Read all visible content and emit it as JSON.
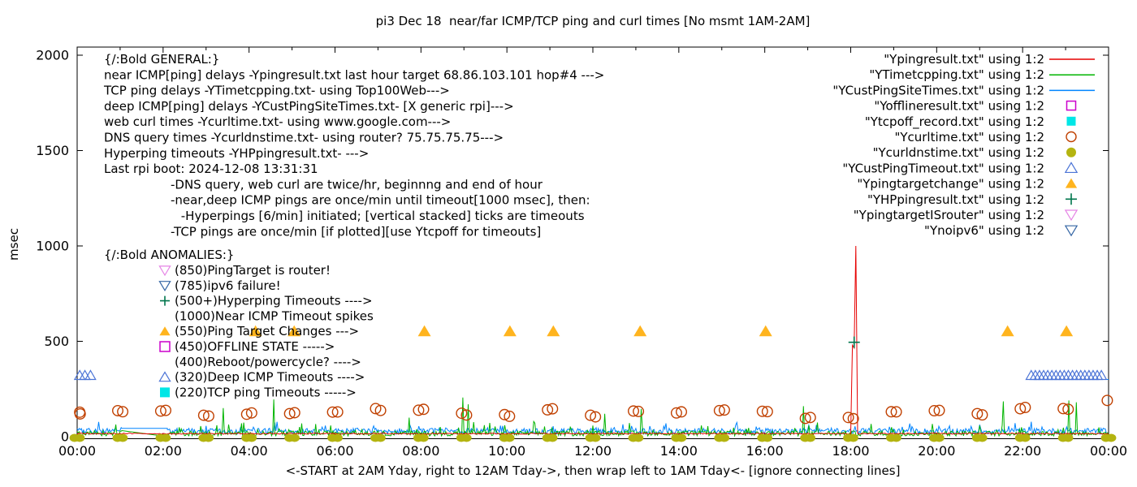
{
  "title": "pi3 Dec 18  near/far ICMP/TCP ping and curl times [No msmt 1AM-2AM]",
  "ylabel": "msec",
  "xlabel": "<-START at 2AM Yday, right to 12AM Tday->, then wrap left to 1AM Tday<- [ignore connecting lines]",
  "chart_data": {
    "type": "line",
    "x_hours_span": 24,
    "x_ticks_labels": [
      "00:00",
      "02:00",
      "04:00",
      "06:00",
      "08:00",
      "10:00",
      "12:00",
      "14:00",
      "16:00",
      "18:00",
      "20:00",
      "22:00",
      "00:00"
    ],
    "y_ticks": [
      0,
      500,
      1000,
      1500,
      2000
    ],
    "ylim": [
      0,
      2050
    ],
    "grid": false,
    "legend_position": "top-right",
    "legend": [
      {
        "label": "\"Ypingresult.txt\" using 1:2",
        "style": "line",
        "color": "#e60000"
      },
      {
        "label": "\"YTimetcpping.txt\" using 1:2",
        "style": "line",
        "color": "#00b400"
      },
      {
        "label": "\"YCustPingSiteTimes.txt\" using 1:2",
        "style": "line",
        "color": "#0084ff"
      },
      {
        "label": "\"Yofflineresult.txt\" using 1:2",
        "style": "square-open",
        "color": "#cc00cc"
      },
      {
        "label": "\"Ytcpoff_record.txt\" using 1:2",
        "style": "square-filled",
        "color": "#00e6e6"
      },
      {
        "label": "\"Ycurltime.txt\" using 1:2",
        "style": "circle-open",
        "color": "#c04000"
      },
      {
        "label": "\"Ycurldnstime.txt\" using 1:2",
        "style": "circle-filled",
        "color": "#b4b410"
      },
      {
        "label": "\"YCustPingTimeout.txt\" using 1:2",
        "style": "triangle-up-open",
        "color": "#4a73d6"
      },
      {
        "label": "\"Ypingtargetchange\" using 1:2",
        "style": "triangle-up-filled",
        "color": "#ffb41e"
      },
      {
        "label": "\"YHPpingresult.txt\" using 1:2",
        "style": "plus",
        "color": "#00764c"
      },
      {
        "label": "\"YpingtargetISrouter\" using 1:2",
        "style": "triangle-down-open",
        "color": "#e583e5"
      },
      {
        "label": "\"Ynoipv6\" using 1:2",
        "style": "triangle-down-open",
        "color": "#3465a4"
      }
    ],
    "series": {
      "ping_near_red": {
        "name": "Ypingresult.txt",
        "color": "#e60000",
        "baseline_msec": 13,
        "noise_msec": 6,
        "spikes": [
          {
            "h": 18.04,
            "msec": 480
          },
          {
            "h": 18.08,
            "msec": 465
          },
          {
            "h": 18.12,
            "msec": 1000
          }
        ]
      },
      "tcp_ping_green": {
        "name": "YTimetcpping.txt",
        "color": "#00b400",
        "base_msec": 4,
        "noise_msec": 26,
        "burst_chance": 0.1,
        "burst_msec": 55,
        "gap": {
          "from": 1.04,
          "to": 2.12,
          "start_msec": 32,
          "end_msec": 0
        },
        "spikes": [
          {
            "h": 3.4,
            "msec": 150
          },
          {
            "h": 4.575,
            "msec": 195
          },
          {
            "h": 7.725,
            "msec": 100
          },
          {
            "h": 8.975,
            "msec": 205
          },
          {
            "h": 9.1,
            "msec": 170
          },
          {
            "h": 12.275,
            "msec": 120
          },
          {
            "h": 13.125,
            "msec": 145
          },
          {
            "h": 16.9,
            "msec": 160
          },
          {
            "h": 21.55,
            "msec": 185
          },
          {
            "h": 23.075,
            "msec": 190
          },
          {
            "h": 23.25,
            "msec": 180
          }
        ]
      },
      "deep_ping_blue": {
        "name": "YCustPingSiteTimes.txt",
        "color": "#0084ff",
        "base_msec": 14,
        "noise_msec": 30,
        "burst_chance": 0.07,
        "burst_msec": 38,
        "gap": {
          "from": 1.04,
          "to": 2.1,
          "msec": 44
        },
        "flat_segment": {
          "from": 22.15,
          "to": 24,
          "msec": 300
        }
      },
      "web_curl_circles": {
        "name": "Ycurltime.txt",
        "color": "#c04000",
        "msec_min": 95,
        "msec_max": 148,
        "hourly_pairs": true,
        "extra": [
          {
            "h": 23.97,
            "msec": 190
          }
        ]
      },
      "dns_query_dots": {
        "name": "Ycurldnstime.txt",
        "color": "#b4b410",
        "hourly": true,
        "msec": 0
      },
      "deep_icmp_timeouts": {
        "name": "YCustPingTimeout.txt",
        "color": "#4a73d6",
        "msec": 320,
        "cluster_hours": [
          0.06,
          0.18,
          0.31
        ],
        "row": {
          "from": 22.2,
          "to": 23.9,
          "step": 0.096
        }
      },
      "ping_target_changes": {
        "name": "Ypingtargetchange",
        "color": "#ffb41e",
        "msec": 550,
        "hours": [
          4.15,
          5.05,
          8.08,
          10.07,
          11.08,
          13.1,
          16.02,
          21.65,
          23.02
        ]
      },
      "hyperping_timeouts": {
        "name": "YHPpingresult.txt",
        "color": "#00764c",
        "points": [
          {
            "h": 18.08,
            "msec": 495
          }
        ]
      }
    },
    "annotations": {
      "general": {
        "header": "{/:Bold GENERAL:}",
        "lines": [
          "near ICMP[ping] delays -Ypingresult.txt last hour target 68.86.103.101 hop#4 --->",
          "TCP ping delays -YTimetcpping.txt- using Top100Web--->",
          "deep ICMP[ping] delays -YCustPingSiteTimes.txt- [X generic rpi]--->",
          "web curl times -Ycurltime.txt- using www.google.com--->",
          "DNS query times -Ycurldnstime.txt- using router? 75.75.75.75--->",
          "Hyperping timeouts -YHPpingresult.txt- --->",
          "Last rpi boot: 2024-12-08 13:31:31"
        ],
        "notes": [
          "-DNS query, web curl are twice/hr, beginnng and end of hour",
          "-near,deep ICMP pings are once/min until timeout[1000 msec], then:",
          " -Hyperpings [6/min] initiated; [vertical stacked] ticks are timeouts",
          "-TCP pings are once/min [if plotted][use Ytcpoff for timeouts]"
        ]
      },
      "anomalies": {
        "header": "{/:Bold ANOMALIES:}",
        "items": [
          {
            "icon": "triangle-down-open",
            "color": "#e583e5",
            "text": "(850)PingTarget is router!"
          },
          {
            "icon": "triangle-down-open",
            "color": "#3465a4",
            "text": "(785)ipv6 failure!"
          },
          {
            "icon": "plus",
            "color": "#00764c",
            "text": "(500+)Hyperping Timeouts ---->"
          },
          {
            "icon": "none",
            "color": "",
            "text": "(1000)Near ICMP Timeout spikes"
          },
          {
            "icon": "triangle-up-filled",
            "color": "#ffb41e",
            "text": "(550)Ping Target Changes --->"
          },
          {
            "icon": "square-open",
            "color": "#cc00cc",
            "text": "(450)OFFLINE STATE ----->"
          },
          {
            "icon": "none",
            "color": "",
            "text": "(400)Reboot/powercycle? ---->"
          },
          {
            "icon": "triangle-up-open",
            "color": "#4a73d6",
            "text": "(320)Deep ICMP Timeouts ---->"
          },
          {
            "icon": "square-filled",
            "color": "#00e6e6",
            "text": "(220)TCP ping Timeouts ----->"
          }
        ]
      }
    }
  }
}
